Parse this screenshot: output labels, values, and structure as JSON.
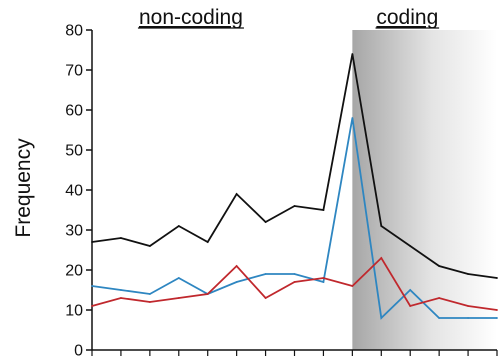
{
  "chart_data": {
    "type": "line",
    "ylabel": "Frequency",
    "xlabel": "",
    "title": "",
    "ylim": [
      0,
      80
    ],
    "yticks": [
      0,
      10,
      20,
      30,
      40,
      50,
      60,
      70,
      80
    ],
    "x": [
      1,
      2,
      3,
      4,
      5,
      6,
      7,
      8,
      9,
      10,
      11,
      12,
      13,
      14,
      15
    ],
    "regions": [
      {
        "label": "non-coding",
        "x_start": 1,
        "x_end": 10,
        "shaded": false
      },
      {
        "label": "coding",
        "x_start": 10,
        "x_end": 15,
        "shaded": true
      }
    ],
    "series": [
      {
        "color": "#111111",
        "values": [
          27,
          28,
          26,
          31,
          27,
          39,
          32,
          36,
          35,
          74,
          31,
          26,
          21,
          19,
          18
        ]
      },
      {
        "color": "#2e86c1",
        "values": [
          16,
          15,
          14,
          18,
          14,
          17,
          19,
          19,
          17,
          58,
          8,
          15,
          8,
          8,
          8
        ]
      },
      {
        "color": "#c0282d",
        "values": [
          11,
          13,
          12,
          13,
          14,
          21,
          13,
          17,
          18,
          16,
          23,
          11,
          13,
          11,
          10
        ]
      }
    ],
    "grid": false,
    "legend": "none"
  }
}
